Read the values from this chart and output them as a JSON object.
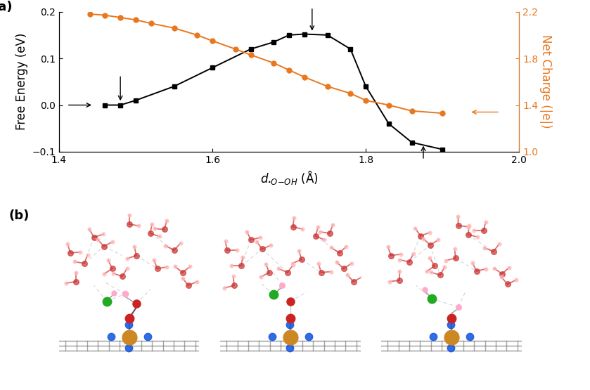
{
  "black_x": [
    1.46,
    1.48,
    1.5,
    1.55,
    1.6,
    1.65,
    1.68,
    1.7,
    1.72,
    1.75,
    1.78,
    1.8,
    1.83,
    1.86,
    1.9
  ],
  "black_y": [
    0.0,
    0.0,
    0.01,
    0.04,
    0.08,
    0.12,
    0.135,
    0.15,
    0.152,
    0.15,
    0.12,
    0.04,
    -0.04,
    -0.08,
    -0.095
  ],
  "orange_x": [
    1.44,
    1.46,
    1.48,
    1.5,
    1.52,
    1.55,
    1.58,
    1.6,
    1.63,
    1.65,
    1.68,
    1.7,
    1.72,
    1.75,
    1.78,
    1.8,
    1.83,
    1.86,
    1.9
  ],
  "orange_y": [
    2.18,
    2.17,
    2.15,
    2.13,
    2.1,
    2.06,
    2.0,
    1.95,
    1.88,
    1.83,
    1.76,
    1.7,
    1.64,
    1.56,
    1.5,
    1.44,
    1.4,
    1.35,
    1.33
  ],
  "black_color": "#000000",
  "orange_color": "#E87820",
  "ylabel_left": "Free Energy (eV)",
  "ylabel_right": "Net Charge (|e|)",
  "xlim": [
    1.4,
    2.0
  ],
  "ylim_left": [
    -0.1,
    0.2
  ],
  "ylim_right": [
    1.0,
    2.2
  ],
  "xticks": [
    1.4,
    1.6,
    1.8,
    2.0
  ],
  "yticks_left": [
    -0.1,
    0.0,
    0.1,
    0.2
  ],
  "yticks_right": [
    1.0,
    1.4,
    1.8,
    2.2
  ],
  "label_fontsize": 13,
  "tick_fontsize": 10,
  "axis_label_fontsize": 12,
  "gray_lattice": "#808080",
  "blue_N": "#1B5CE0",
  "orange_Fe": "#CC8822",
  "red_O": "#CC2222",
  "pink_H": "#FFAACC",
  "green_OH": "#22AA22",
  "water_red": "#CC3333",
  "water_pink": "#FFBBBB",
  "hbond_gray": "#AAAAAA"
}
